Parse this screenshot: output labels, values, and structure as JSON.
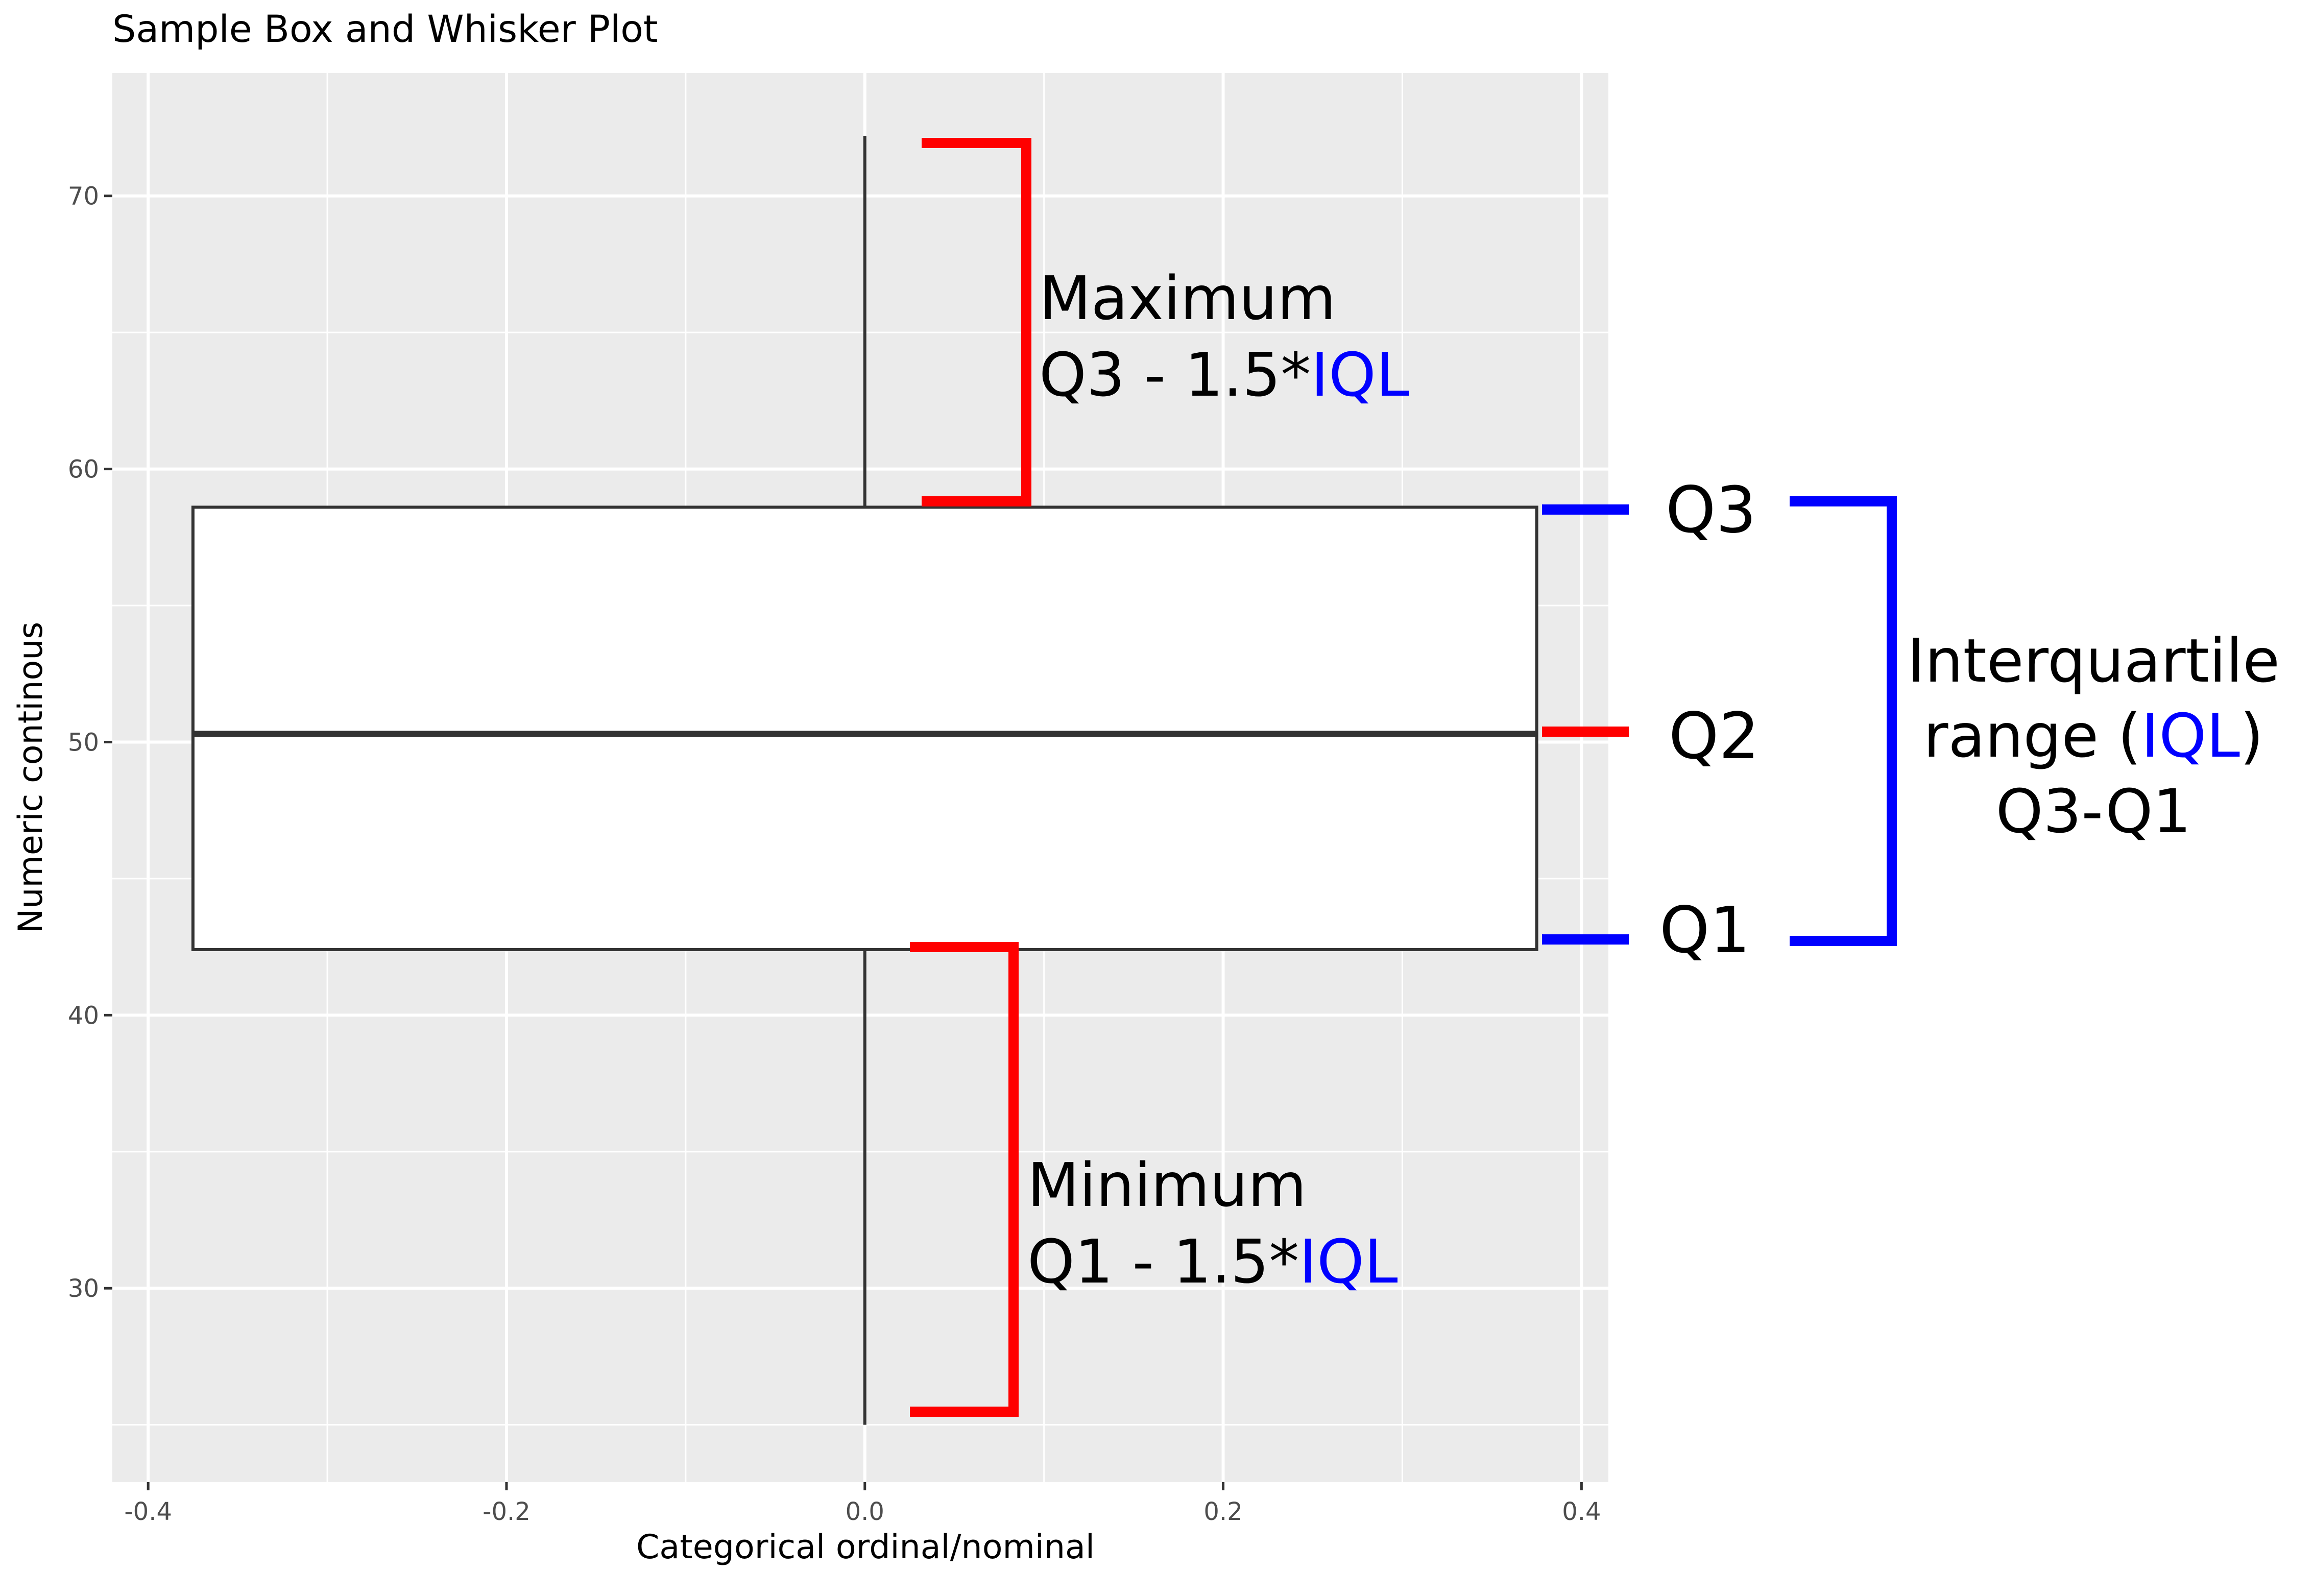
{
  "chart_data": {
    "type": "box",
    "title": "Sample Box and Whisker Plot",
    "xlabel": "Categorical ordinal/nominal",
    "ylabel": "Numeric continous",
    "xlim": [
      -0.42,
      0.415
    ],
    "ylim": [
      22.9,
      74.5
    ],
    "x_ticks": [
      -0.4,
      -0.2,
      0.0,
      0.2,
      0.4
    ],
    "x_tick_labels": [
      "-0.4",
      "-0.2",
      "0.0",
      "0.2",
      "0.4"
    ],
    "y_ticks": [
      30,
      40,
      50,
      60,
      70
    ],
    "y_tick_labels": [
      "30",
      "40",
      "50",
      "60",
      "70"
    ],
    "grid": true,
    "panel_background": "#ebebeb",
    "box": {
      "x_center": 0.0,
      "width": 0.75,
      "min": 25.0,
      "q1": 42.4,
      "median": 50.3,
      "q3": 58.6,
      "max": 72.2
    },
    "annotations": {
      "maximum_label": "Maximum",
      "maximum_formula_prefix": "Q3 - 1.5*",
      "maximum_formula_iql": "IQL",
      "minimum_label": "Minimum",
      "minimum_formula_prefix": "Q1 - 1.5*",
      "minimum_formula_iql": "IQL",
      "q3_label": "Q3",
      "q2_label": "Q2",
      "q1_label": "Q1",
      "iqr_line1": "Interquartile",
      "iqr_line2_prefix": "range (",
      "iqr_line2_iql": "IQL",
      "iqr_line2_suffix": ")",
      "iqr_line3": "Q3-Q1"
    },
    "colors": {
      "whisker_bracket": "#ff0000",
      "quartile_bracket": "#0000ff",
      "iql_text": "#0000ff",
      "median_marker": "#ff0000"
    }
  }
}
